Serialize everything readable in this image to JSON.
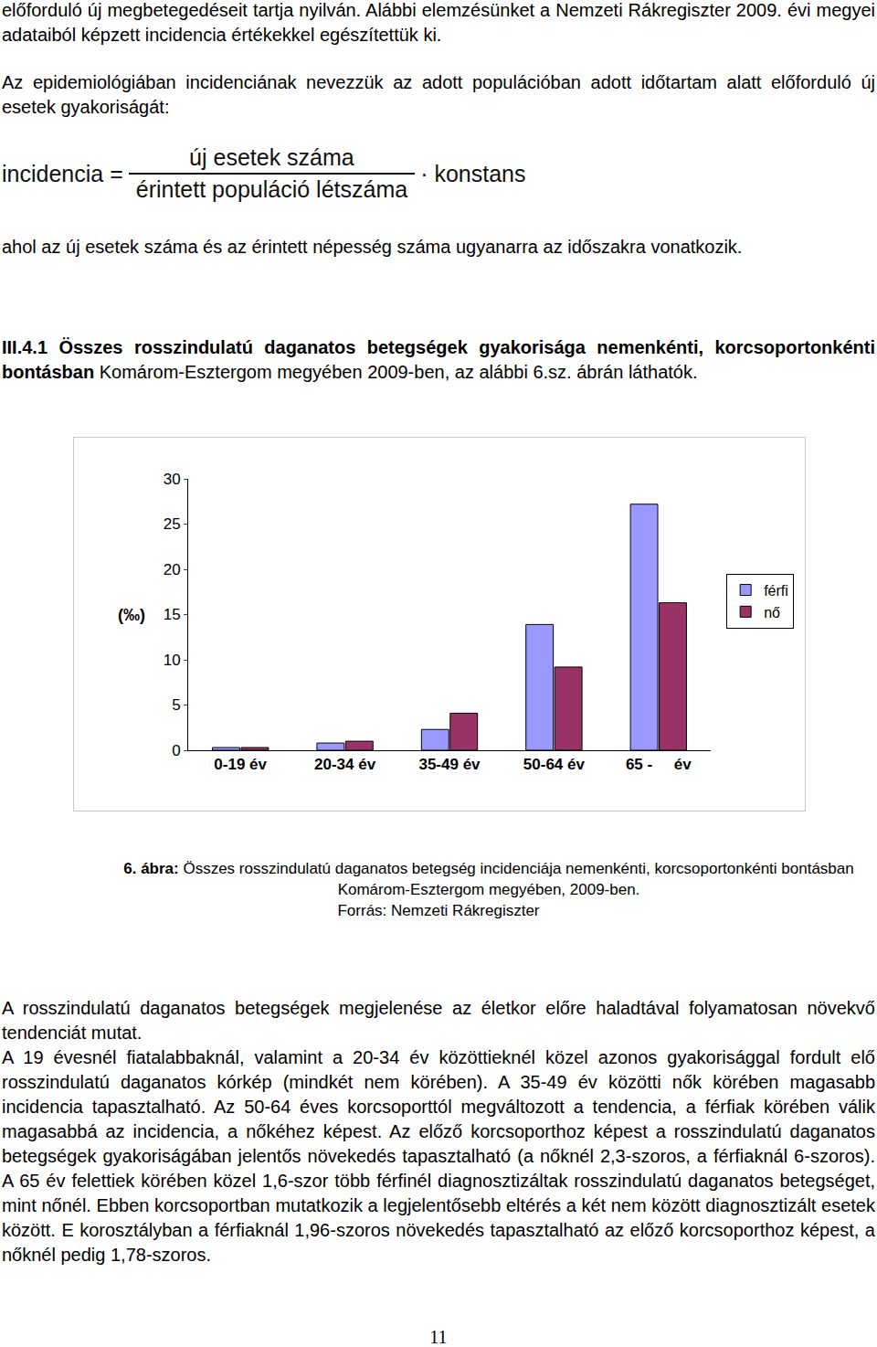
{
  "intro": "előforduló új megbetegedéseit tartja nyilván. Alábbi elemzésünket a Nemzeti Rákregiszter 2009. évi megyei adataiból képzett incidencia értékekkel egészítettük ki.",
  "definition": "Az epidemiológiában incidenciának nevezzük az adott populációban adott időtartam alatt előforduló új esetek gyakoriságát:",
  "formula": {
    "lhs": "incidencia =",
    "numerator": "új esetek száma",
    "denominator": "érintett populáció létszáma",
    "factor": "· konstans"
  },
  "note": "ahol az új esetek száma és az érintett népesség száma ugyanarra az időszakra vonatkozik.",
  "section": {
    "heading": "III.4.1 Összes rosszindulatú daganatos betegségek gyakorisága nemenkénti, korcsoportonkénti bontásban",
    "text": " Komárom-Esztergom megyében 2009-ben, az alábbi 6.sz. ábrán láthatók."
  },
  "chart_data": {
    "type": "bar",
    "y_label": "(‰)",
    "categories": [
      "0-19 év",
      "20-34 év",
      "35-49 év",
      "50-64 év",
      "65 -     év"
    ],
    "series": [
      {
        "name": "férfi",
        "color": "#9999ff",
        "values": [
          0.3,
          0.8,
          2.3,
          13.9,
          27.2
        ]
      },
      {
        "name": "nő",
        "color": "#993366",
        "values": [
          0.3,
          1.0,
          4.1,
          9.2,
          16.3
        ]
      }
    ],
    "ylim": [
      0,
      30
    ],
    "yticks": [
      0,
      5,
      10,
      15,
      20,
      25,
      30
    ],
    "grid": false,
    "legend": "right"
  },
  "caption": {
    "label": "6. ábra:",
    "text": " Összes rosszindulatú daganatos betegség incidenciája nemenkénti, korcsoportonkénti bontásban Komárom-Esztergom megyében, 2009-ben.",
    "source": "Forrás: Nemzeti Rákregiszter"
  },
  "paragraphs": [
    "A rosszindulatú daganatos betegségek megjelenése az életkor előre haladtával folyamatosan növekvő tendenciát mutat.",
    "A 19 évesnél fiatalabbaknál, valamint a 20-34 év közöttieknél közel azonos gyakorisággal fordult elő rosszindulatú daganatos kórkép (mindkét nem körében). A 35-49 év közötti nők körében magasabb incidencia tapasztalható. Az 50-64 éves korcsoporttól megváltozott a tendencia, a férfiak körében válik magasabbá az incidencia, a nőkéhez képest. Az előző korcsoporthoz képest a rosszindulatú daganatos betegségek gyakoriságában jelentős növekedés tapasztalható (a nőknél 2,3-szoros, a férfiaknál 6-szoros). A 65 év felettiek körében közel 1,6-szor több férfinél diagnosztizáltak rosszindulatú daganatos betegséget, mint nőnél. Ebben korcsoportban mutatkozik a legjelentősebb eltérés a két nem között diagnosztizált esetek között. E korosztályban a férfiaknál 1,96-szoros növekedés tapasztalható az előző korcsoporthoz képest, a nőknél pedig 1,78-szoros."
  ],
  "page_number": "11"
}
